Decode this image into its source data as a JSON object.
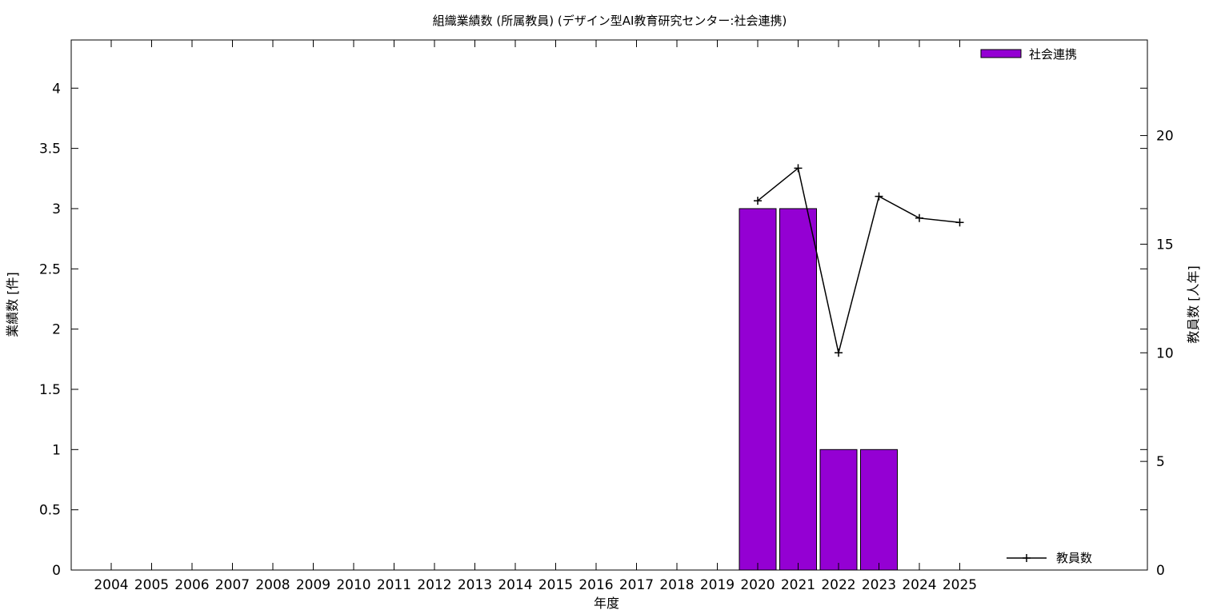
{
  "chart_data": {
    "type": "bar",
    "title": "組織業績数 (所属教員) (デザイン型AI教育研究センター:社会連携)",
    "xlabel": "年度",
    "ylabel": "業績数 [件]",
    "y2label": "教員数 [人年]",
    "categories": [
      "2004",
      "2005",
      "2006",
      "2007",
      "2008",
      "2009",
      "2010",
      "2011",
      "2012",
      "2013",
      "2014",
      "2015",
      "2016",
      "2017",
      "2018",
      "2019",
      "2020",
      "2021",
      "2022",
      "2023",
      "2024",
      "2025"
    ],
    "series": [
      {
        "name": "社会連携",
        "type": "bar",
        "axis": "left",
        "color": "#9400d3",
        "values": [
          0,
          0,
          0,
          0,
          0,
          0,
          0,
          0,
          0,
          0,
          0,
          0,
          0,
          0,
          0,
          0,
          3,
          3,
          1,
          1,
          0,
          0
        ]
      },
      {
        "name": "教員数",
        "type": "line",
        "axis": "right",
        "color": "#000000",
        "values": [
          null,
          null,
          null,
          null,
          null,
          null,
          null,
          null,
          null,
          null,
          null,
          null,
          null,
          null,
          null,
          null,
          17,
          18.5,
          10,
          17.2,
          16.2,
          16
        ]
      }
    ],
    "ylim": [
      0,
      4.4
    ],
    "y2lim": [
      0,
      24.4
    ],
    "yticks": [
      "0",
      "0.5",
      "1",
      "1.5",
      "2",
      "2.5",
      "3",
      "3.5",
      "4"
    ],
    "y2ticks": [
      "0",
      "5",
      "10",
      "15",
      "20"
    ],
    "legend_position": "top-right",
    "grid": false
  }
}
